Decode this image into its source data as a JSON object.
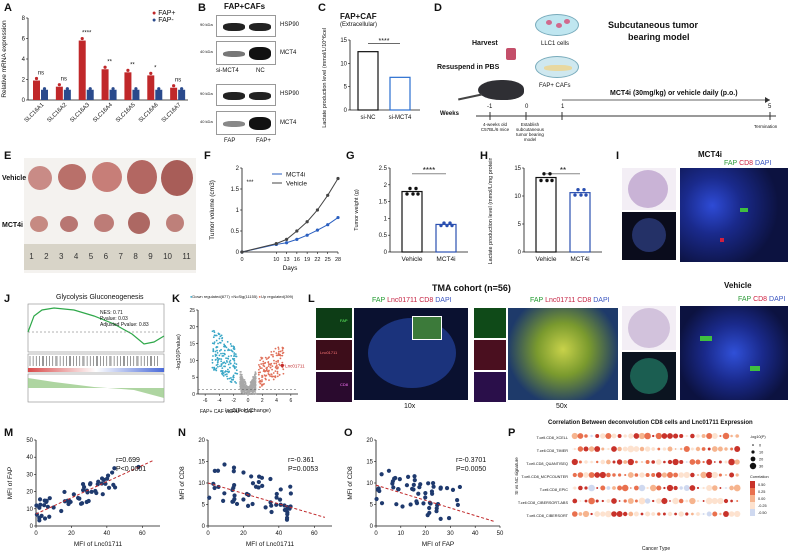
{
  "figure": {
    "panels": {
      "A": "A",
      "B": "B",
      "C": "C",
      "D": "D",
      "E": "E",
      "F": "F",
      "G": "G",
      "H": "H",
      "I": "I",
      "J": "J",
      "K": "K",
      "L": "L",
      "M": "M",
      "N": "N",
      "O": "O",
      "P": "P"
    }
  },
  "panelA": {
    "ylabel": "Relative mRNA expression",
    "legend": [
      "FAP+",
      "FAP-"
    ],
    "colors": {
      "fap_pos": "#c0282a",
      "fap_neg": "#2a4a8c"
    },
    "significance": [
      "ns",
      "ns",
      "****",
      "**",
      "**",
      "*",
      "ns"
    ]
  },
  "panelB": {
    "title": "FAP+CAFs",
    "labels_top": [
      "HSP90",
      "MCT4"
    ],
    "labels_bottom": [
      "HSP90",
      "MCT4"
    ],
    "lanes_top": [
      "si-MCT4",
      "NC"
    ],
    "lanes_bottom": [
      "FAP",
      "FAP+"
    ],
    "kda_marks": [
      "90 kDa",
      "40 kDa",
      "90 kDa",
      "40 kDa"
    ]
  },
  "panelC": {
    "title": "FAP+CAF",
    "subtitle": "(Extracellular)",
    "significance": "****"
  },
  "panelD": {
    "title_line1": "Subcutaneous tumor",
    "title_line2": "bearing model",
    "harvest": "Harvest",
    "llc1": "LLC1 cells",
    "resuspend": "Resuspend in PBS",
    "fap_cafs": "FAP+ CAFs",
    "treatment": "MCT4i (30mg/kg) or vehicle daily (p.o.)",
    "weeks_label": "Weeks",
    "week_ticks": [
      "-1",
      "0",
      "1",
      "5"
    ],
    "note_mice": "4-weeks old C57BL/6 mice",
    "note_establish": "Establish subcutaneous tumor bearing model",
    "termination": "Termination"
  },
  "panelE": {
    "row_labels": [
      "Vehicle",
      "MCT4i"
    ],
    "ruler_numbers": [
      "1",
      "2",
      "3",
      "4",
      "5",
      "6",
      "7",
      "8",
      "9",
      "10",
      "11"
    ]
  },
  "panelG": {
    "significance": "****"
  },
  "panelH": {
    "significance": "**"
  },
  "panelI": {
    "title": "MCT4i",
    "legend_fap": "FAP",
    "legend_cd8": "CD8",
    "legend_dapi": "DAPI",
    "vehicle_label": "Vehicle",
    "vehicle_legend_fap": "FAP",
    "vehicle_legend_cd8": "CD8",
    "vehicle_legend_dapi": "DAPI"
  },
  "panelJ": {
    "title": "Glycolysis Gluconeogenesis",
    "nes": "NES: 0.71",
    "pvalue": "Pvalue: 0.03",
    "padj": "Adjusted Pvalue: 0.83"
  },
  "panelK": {
    "legend": [
      "Down regulated(877)",
      "NoSig(11155)",
      "Up regulated(399)"
    ],
    "highlight": "Lnc01711",
    "subtitle": "FAP+ CAF vs FAP- CAF"
  },
  "panelL": {
    "title": "TMA cohort (n=56)",
    "legend1_fap": "FAP",
    "legend1_lnc": "Lnc01711",
    "legend1_cd8": "CD8",
    "legend1_dapi": "DAPI",
    "legend2_fap": "FAP",
    "legend2_lnc": "Lnc01711",
    "legend2_cd8": "CD8",
    "legend2_dapi": "DAPI",
    "mag1": "10x",
    "mag2": "50x",
    "inset_labels": [
      "FAP",
      "Lnc01711",
      "CD8"
    ]
  },
  "panelP": {
    "title": "Correlation Between deconvolution CD8 cells and Lnc01711 Expression",
    "ylabel": "SI vs NC signature",
    "xlabel": "Cancer Type",
    "rows": [
      "T.cell.CD8_XCELL",
      "T.cell.CD8_TIMER",
      "T.cell.CD8_QUANTISEQ",
      "T.cell.CD8_MCPCOUNTER",
      "T.cell.CD8_EPIC",
      "T.cell.CD8_CIBERSORT-ABS",
      "T.cell.CD8_CIBERSORT"
    ],
    "size_legend_title": "-log10(P)",
    "size_legend": [
      "0",
      "10",
      "20",
      "30"
    ],
    "color_legend_title": "Correlation",
    "color_legend": [
      "0.50",
      "0.25",
      "0.00",
      "-0.25",
      "-0.50"
    ]
  },
  "chart_data": [
    {
      "id": "A",
      "type": "bar",
      "title": "",
      "xlabel": "",
      "ylabel": "Relative mRNA expression",
      "categories": [
        "SLC16A1",
        "SLC16A2",
        "SLC16A3",
        "SLC16A4",
        "SLC16A5",
        "SLC16A6",
        "SLC16A7"
      ],
      "series": [
        {
          "name": "FAP+",
          "values": [
            1.9,
            1.3,
            5.8,
            3.0,
            2.7,
            2.4,
            1.2
          ]
        },
        {
          "name": "FAP-",
          "values": [
            1.0,
            1.0,
            1.0,
            1.0,
            1.0,
            1.0,
            1.0
          ]
        }
      ],
      "ylim": [
        0,
        8
      ],
      "yticks": [
        0,
        2,
        4,
        6,
        8
      ]
    },
    {
      "id": "C",
      "type": "bar",
      "title": "FAP+CAF (Extracellular)",
      "ylabel": "Lactate production level (mmol/L/10^6cells)",
      "categories": [
        "si-NC",
        "si-MCT4"
      ],
      "values": [
        12.5,
        7.0
      ],
      "ylim": [
        0,
        15
      ],
      "yticks": [
        0,
        5,
        10,
        15
      ]
    },
    {
      "id": "F",
      "type": "line",
      "xlabel": "Days",
      "ylabel": "Tumor volume (cm3)",
      "x": [
        0,
        10,
        13,
        16,
        19,
        22,
        25,
        28
      ],
      "series": [
        {
          "name": "MCT4i",
          "values": [
            0.0,
            0.18,
            0.22,
            0.3,
            0.4,
            0.52,
            0.65,
            0.82
          ]
        },
        {
          "name": "Vehicle",
          "values": [
            0.0,
            0.2,
            0.3,
            0.5,
            0.72,
            1.0,
            1.35,
            1.75
          ]
        }
      ],
      "significance": "***",
      "ylim": [
        0,
        2.0
      ],
      "yticks": [
        0,
        0.5,
        1.0,
        1.5,
        2.0
      ]
    },
    {
      "id": "G",
      "type": "bar",
      "ylabel": "Tumor weight (g)",
      "categories": [
        "Vehicle",
        "MCT4i"
      ],
      "values": [
        1.8,
        0.82
      ],
      "ylim": [
        0,
        2.5
      ],
      "yticks": [
        0,
        0.5,
        1.0,
        1.5,
        2.0,
        2.5
      ]
    },
    {
      "id": "H",
      "type": "bar",
      "ylabel": "Lactate production level (mmol/L/mg protein)",
      "categories": [
        "Vehicle",
        "MCT4i"
      ],
      "values": [
        13.3,
        10.6
      ],
      "ylim": [
        0,
        15
      ],
      "yticks": [
        0,
        5,
        10,
        15
      ]
    },
    {
      "id": "K",
      "type": "scatter",
      "xlabel": "log2(Fold Change)",
      "ylabel": "-log10(Pvalue)",
      "xticks": [
        -6,
        -4,
        -2,
        0,
        2,
        4,
        6
      ],
      "yticks": [
        0,
        5,
        10,
        15,
        20,
        25
      ],
      "xlim": [
        -7,
        7
      ],
      "ylim": [
        0,
        25
      ]
    },
    {
      "id": "M",
      "type": "scatter",
      "xlabel": "MFI of Lnc01711",
      "ylabel": "MFI of FAP",
      "annotation_r": "r=0.699",
      "annotation_p": "P<0.0001",
      "xticks": [
        0,
        20,
        40,
        60
      ],
      "yticks": [
        0,
        10,
        20,
        30,
        40,
        50
      ],
      "xlim": [
        0,
        70
      ],
      "ylim": [
        0,
        50
      ]
    },
    {
      "id": "N",
      "type": "scatter",
      "xlabel": "MFI of Lnc01711",
      "ylabel": "MFI of CD8",
      "annotation_r": "r=-0.361",
      "annotation_p": "P=0.0053",
      "xticks": [
        0,
        20,
        40,
        60
      ],
      "yticks": [
        0,
        5,
        10,
        15,
        20
      ],
      "xlim": [
        0,
        70
      ],
      "ylim": [
        0,
        20
      ]
    },
    {
      "id": "O",
      "type": "scatter",
      "xlabel": "MFI of FAP",
      "ylabel": "MFI of CD8",
      "annotation_r": "r=-0.3701",
      "annotation_p": "P=0.0050",
      "xticks": [
        0,
        10,
        20,
        30,
        40,
        50
      ],
      "yticks": [
        0,
        5,
        10,
        15,
        20
      ],
      "xlim": [
        0,
        50
      ],
      "ylim": [
        0,
        20
      ]
    }
  ]
}
